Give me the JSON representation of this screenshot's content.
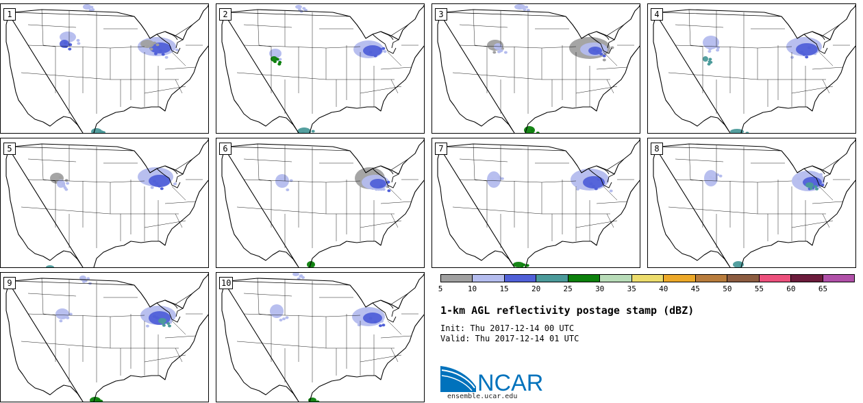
{
  "panels": [
    {
      "label": "1",
      "col": 0,
      "row": 0
    },
    {
      "label": "2",
      "col": 1,
      "row": 0
    },
    {
      "label": "3",
      "col": 2,
      "row": 0
    },
    {
      "label": "4",
      "col": 3,
      "row": 0
    },
    {
      "label": "5",
      "col": 0,
      "row": 1
    },
    {
      "label": "6",
      "col": 1,
      "row": 1
    },
    {
      "label": "7",
      "col": 2,
      "row": 1
    },
    {
      "label": "8",
      "col": 3,
      "row": 1
    },
    {
      "label": "9",
      "col": 0,
      "row": 2
    },
    {
      "label": "10",
      "col": 1,
      "row": 2
    }
  ],
  "colorbar": {
    "colors": [
      "#a0a0a0",
      "#b4bcee",
      "#5060d8",
      "#4b9a9a",
      "#0c800c",
      "#b8dcb8",
      "#ecdc6c",
      "#eca828",
      "#b87c3c",
      "#8c5c40",
      "#ec507c",
      "#6c1c3c",
      "#b050a8"
    ],
    "tick_labels": [
      "5",
      "10",
      "15",
      "20",
      "25",
      "30",
      "35",
      "40",
      "45",
      "50",
      "55",
      "60",
      "65"
    ]
  },
  "title": "1-km AGL reflectivity postage stamp (dBZ)",
  "init": {
    "label": "Init:",
    "value": "Thu 2017-12-14 00 UTC"
  },
  "valid": {
    "label": "Valid:",
    "value": "Thu 2017-12-14 01 UTC"
  },
  "logo": {
    "text": "NCAR",
    "brand_color": "#0072bc",
    "url": "ensemble.ucar.edu"
  }
}
